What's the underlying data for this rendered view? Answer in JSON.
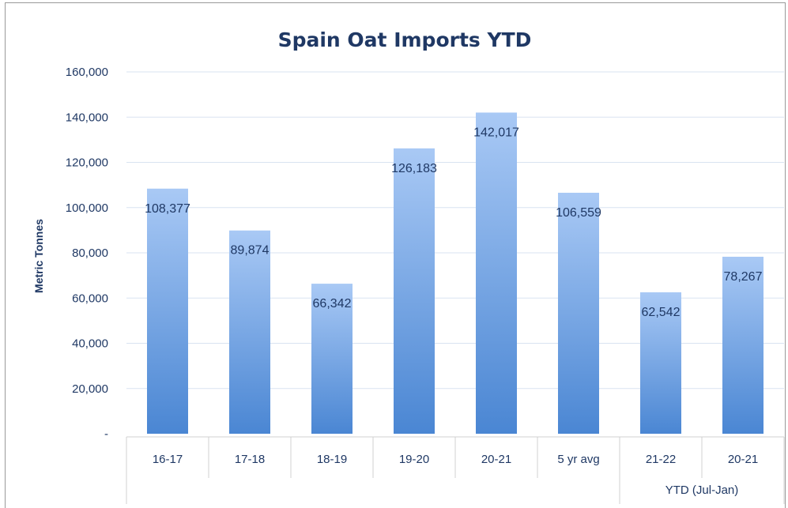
{
  "chart_data": {
    "type": "bar",
    "title": "Spain Oat Imports YTD",
    "ylabel": "Metric Tonnes",
    "xlabel": "",
    "categories": [
      "16-17",
      "17-18",
      "18-19",
      "19-20",
      "20-21",
      "5 yr avg",
      "21-22",
      "20-21"
    ],
    "values": [
      108377,
      89874,
      66342,
      126183,
      142017,
      106559,
      62542,
      78267
    ],
    "data_labels": [
      "108,377",
      "89,874",
      "66,342",
      "126,183",
      "142,017",
      "106,559",
      "62,542",
      "78,267"
    ],
    "ylim": [
      0,
      160000
    ],
    "yticks": [
      0,
      20000,
      40000,
      60000,
      80000,
      100000,
      120000,
      140000,
      160000
    ],
    "ytick_labels": [
      "-",
      "20,000",
      "40,000",
      "60,000",
      "80,000",
      "100,000",
      "120,000",
      "140,000",
      "160,000"
    ],
    "category_groups": [
      {
        "label": "YTD (Jul-Jan)",
        "categories": [
          "21-22",
          "20-21"
        ]
      }
    ],
    "grid": true,
    "legend": "none",
    "colors": {
      "bar_top": "#a9c9f5",
      "bar_bottom": "#4a86d3",
      "text": "#1f3864",
      "grid": "#d9e3f1",
      "axis": "#d0d0d0"
    }
  }
}
